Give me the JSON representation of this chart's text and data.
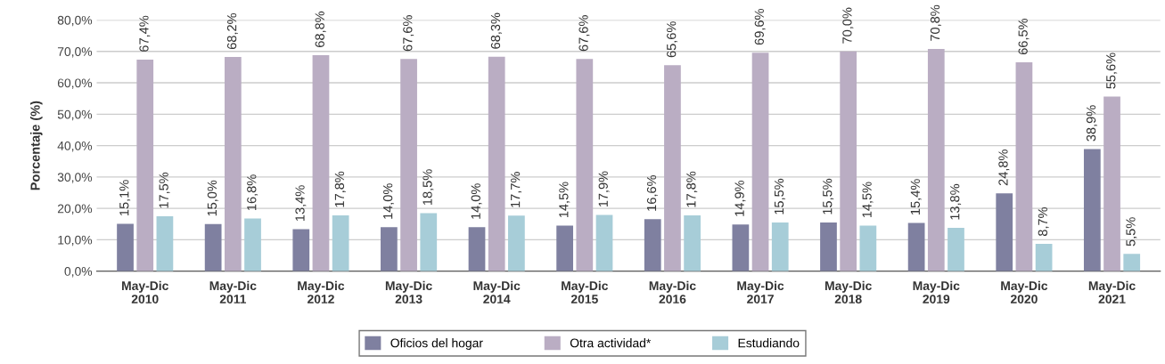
{
  "chart_data": {
    "type": "bar",
    "ylabel": "Porcentaje (%)",
    "categories": [
      "May-Dic\n2010",
      "May-Dic\n2011",
      "May-Dic\n2012",
      "May-Dic\n2013",
      "May-Dic\n2014",
      "May-Dic\n2015",
      "May-Dic\n2016",
      "May-Dic\n2017",
      "May-Dic\n2018",
      "May-Dic\n2019",
      "May-Dic\n2020",
      "May-Dic\n2021"
    ],
    "series": [
      {
        "name": "Oficios del hogar",
        "color": "#7f80a0",
        "values": [
          15.1,
          15.0,
          13.4,
          14.0,
          14.0,
          14.5,
          16.6,
          14.9,
          15.5,
          15.4,
          24.8,
          38.9
        ],
        "value_labels": [
          "15,1%",
          "15,0%",
          "13,4%",
          "14,0%",
          "14,0%",
          "14,5%",
          "16,6%",
          "14,9%",
          "15,5%",
          "15,4%",
          "24,8%",
          "38,9%"
        ]
      },
      {
        "name": "Otra actividad*",
        "color": "#baadc3",
        "values": [
          67.4,
          68.2,
          68.8,
          67.6,
          68.3,
          67.6,
          65.6,
          69.6,
          70.0,
          70.8,
          66.5,
          55.6
        ],
        "value_labels": [
          "67,4%",
          "68,2%",
          "68,8%",
          "67,6%",
          "68,3%",
          "67,6%",
          "65,6%",
          "69,6%",
          "70,0%",
          "70,8%",
          "66,5%",
          "55,6%"
        ]
      },
      {
        "name": "Estudiando",
        "color": "#a7cdd8",
        "values": [
          17.5,
          16.8,
          17.8,
          18.5,
          17.7,
          17.9,
          17.8,
          15.5,
          14.5,
          13.8,
          8.7,
          5.5
        ],
        "value_labels": [
          "17,5%",
          "16,8%",
          "17,8%",
          "18,5%",
          "17,7%",
          "17,9%",
          "17,8%",
          "15,5%",
          "14,5%",
          "13,8%",
          "8,7%",
          "5,5%"
        ]
      }
    ],
    "ylim": [
      0,
      80
    ],
    "yticks": [
      {
        "value": 0,
        "label": "0,0%"
      },
      {
        "value": 10,
        "label": "10,0%"
      },
      {
        "value": 20,
        "label": "20,0%"
      },
      {
        "value": 30,
        "label": "30,0%"
      },
      {
        "value": 40,
        "label": "40,0%"
      },
      {
        "value": 50,
        "label": "50,0%"
      },
      {
        "value": 60,
        "label": "60,0%"
      },
      {
        "value": 70,
        "label": "70,0%"
      },
      {
        "value": 80,
        "label": "80,0%"
      }
    ],
    "grid": "y",
    "legend": "bottom"
  }
}
